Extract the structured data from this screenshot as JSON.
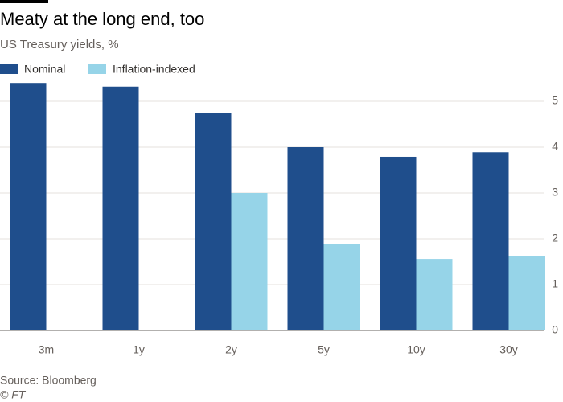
{
  "chart_data": {
    "type": "bar",
    "title": "Meaty at the long end, too",
    "subtitle": "US Treasury yields, %",
    "categories": [
      "3m",
      "1y",
      "2y",
      "5y",
      "10y",
      "30y"
    ],
    "series": [
      {
        "name": "Nominal",
        "color": "#1f4e8c",
        "values": [
          5.4,
          5.32,
          4.75,
          4.0,
          3.79,
          3.89
        ]
      },
      {
        "name": "Inflation-indexed",
        "color": "#96d4e8",
        "values": [
          null,
          null,
          3.0,
          1.88,
          1.56,
          1.63
        ]
      }
    ],
    "ylim": [
      0,
      5.5
    ],
    "yticks": [
      0,
      1,
      2,
      3,
      4,
      5
    ],
    "grid": true,
    "source": "Source: Bloomberg",
    "credit": "© FT"
  }
}
